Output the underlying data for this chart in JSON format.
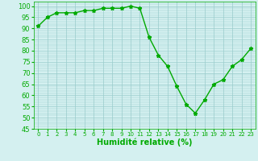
{
  "x_vals": [
    0,
    1,
    2,
    3,
    4,
    5,
    6,
    7,
    8,
    9,
    10,
    11,
    12,
    13,
    14,
    15,
    16,
    17,
    18,
    19,
    20,
    21,
    22,
    23
  ],
  "y_vals": [
    91,
    95,
    97,
    97,
    97,
    98,
    98,
    99,
    99,
    99,
    100,
    99,
    86,
    78,
    73,
    64,
    56,
    52,
    58,
    65,
    67,
    73,
    76,
    81
  ],
  "line_color": "#00aa00",
  "marker": "*",
  "markersize": 3.5,
  "linewidth": 1.0,
  "bg_color": "#d4f0f0",
  "grid_color": "#99cccc",
  "xlabel": "Humidité relative (%)",
  "ylim": [
    45,
    102
  ],
  "xlim": [
    -0.5,
    23.5
  ],
  "yticks": [
    45,
    50,
    55,
    60,
    65,
    70,
    75,
    80,
    85,
    90,
    95,
    100
  ],
  "xtick_labels": [
    "0",
    "1",
    "2",
    "3",
    "4",
    "5",
    "6",
    "7",
    "8",
    "9",
    "10",
    "11",
    "12",
    "13",
    "14",
    "15",
    "16",
    "17",
    "18",
    "19",
    "20",
    "21",
    "22",
    "23"
  ],
  "xlabel_color": "#00aa00",
  "xlabel_fontsize": 7,
  "tick_color": "#00aa00",
  "ytick_fontsize": 6,
  "xtick_fontsize": 5
}
